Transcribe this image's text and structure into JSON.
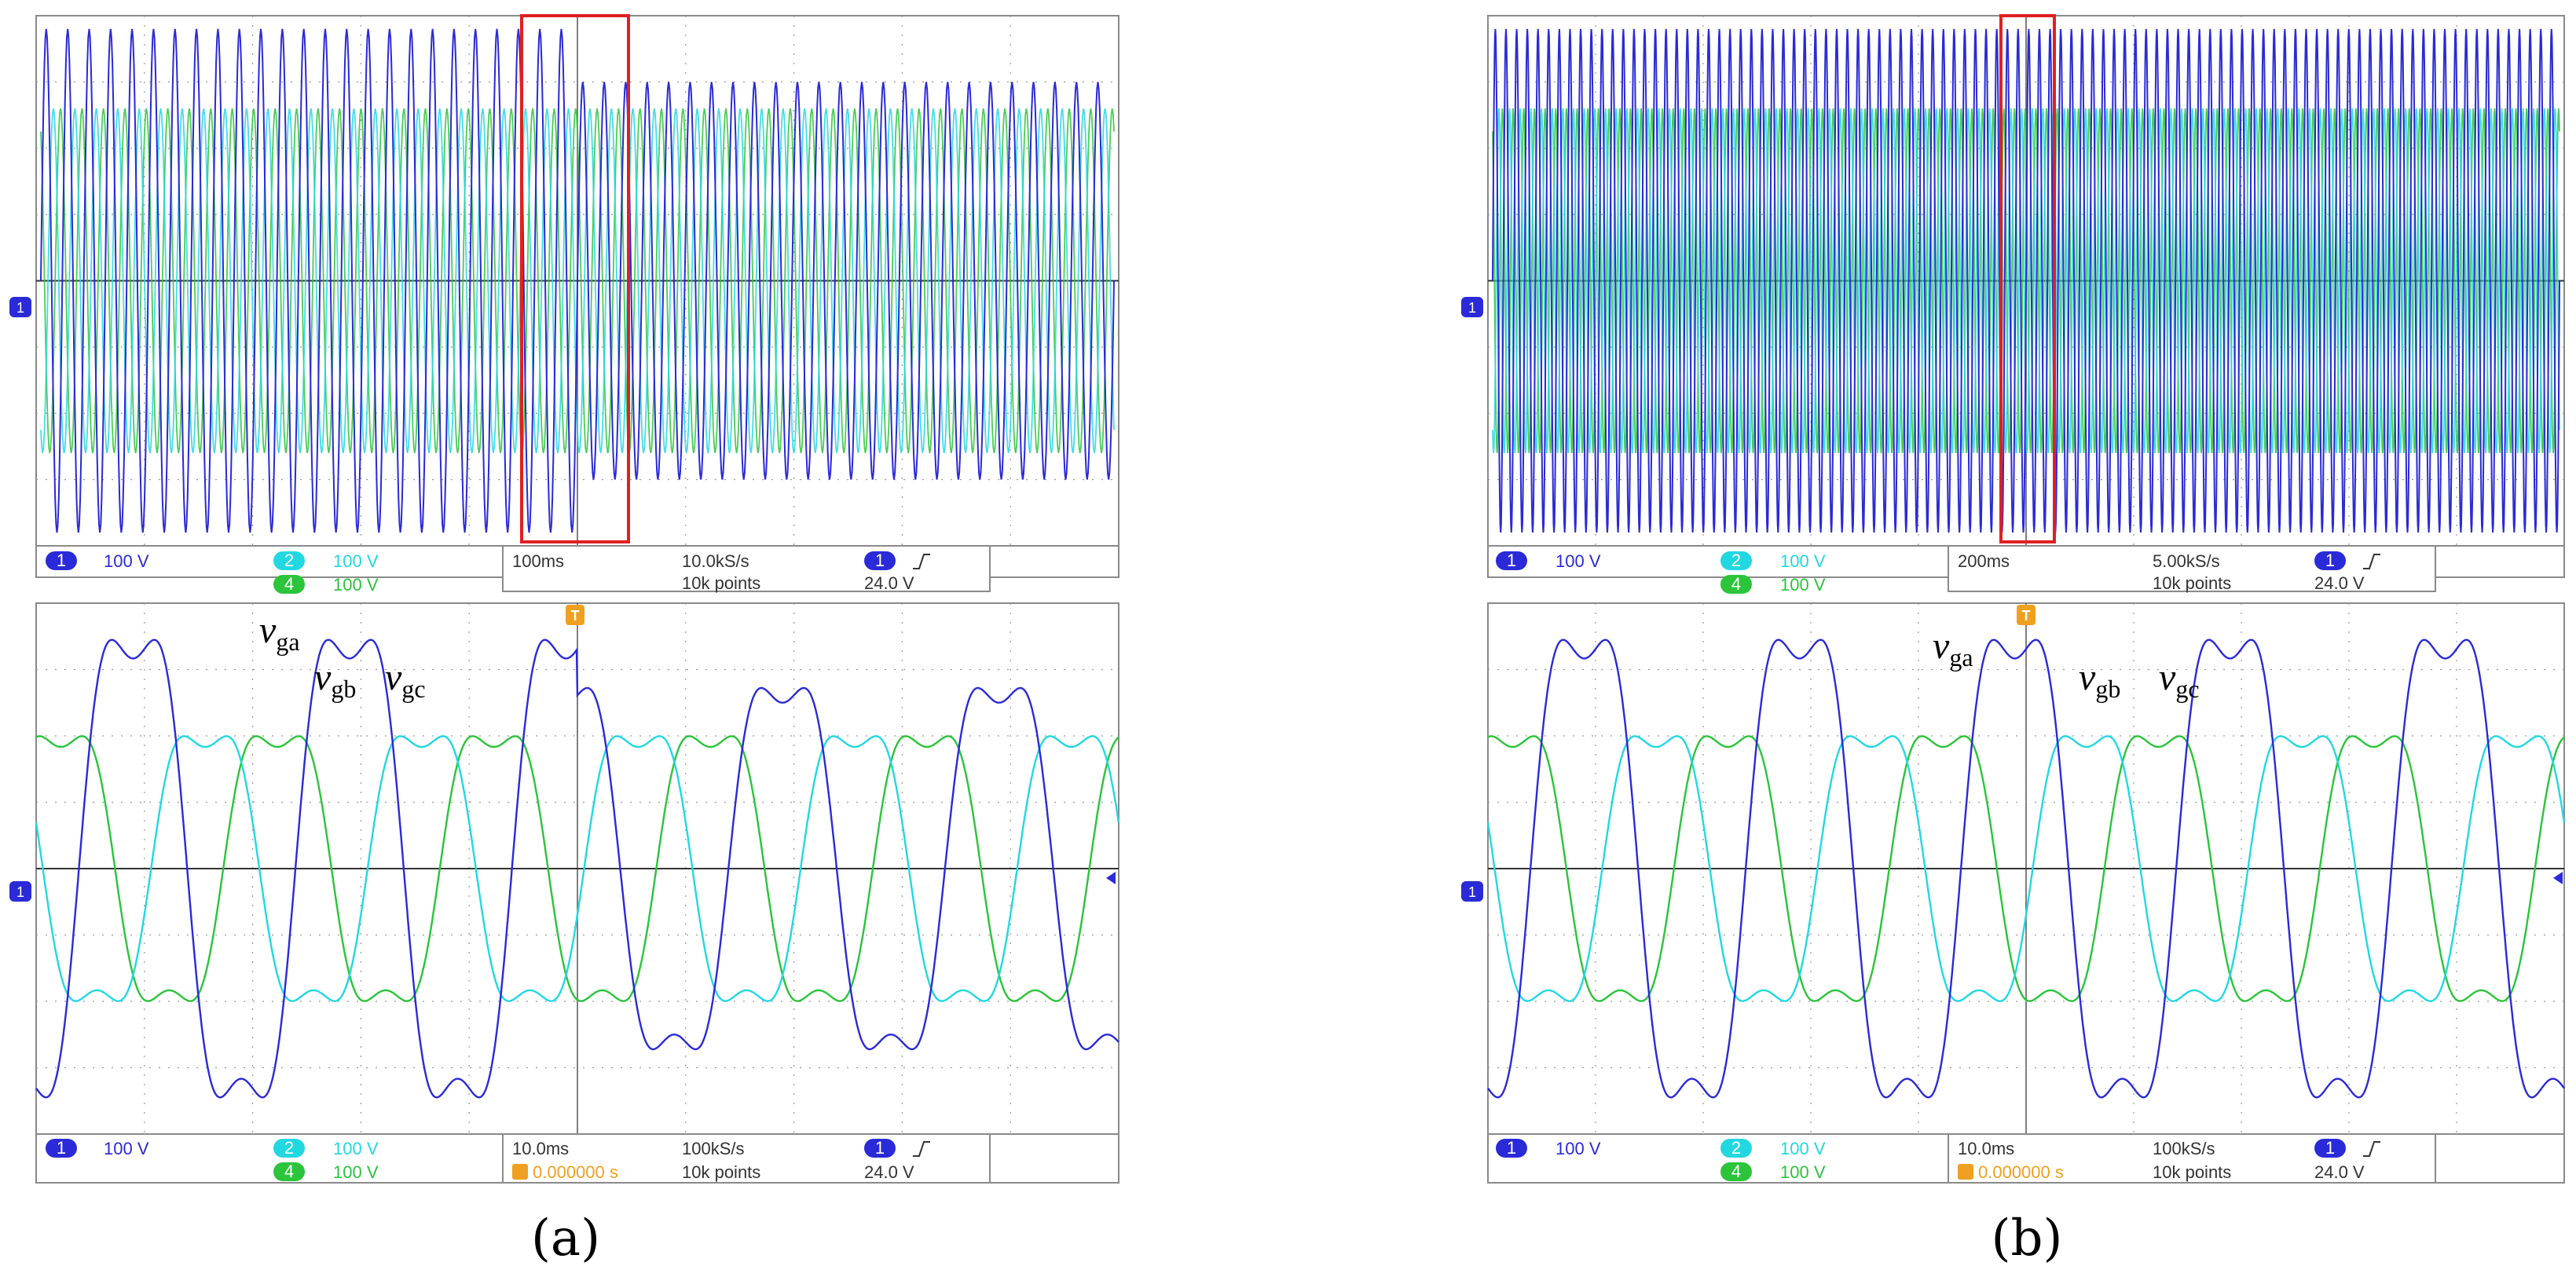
{
  "panels": [
    {
      "caption": "(a)",
      "top": {
        "readout": {
          "ch1_badge": "1",
          "ch1_scale": "100 V",
          "ch2_badge": "2",
          "ch2_scale": "100 V",
          "ch4_badge": "4",
          "ch4_scale": "100 V",
          "timebase": "100ms",
          "sample_rate": "10.0kS/s",
          "points": "10k points",
          "trig_badge": "1",
          "trig_level": "24.0 V"
        },
        "ch1_marker": "1"
      },
      "bottom": {
        "readout": {
          "ch1_badge": "1",
          "ch1_scale": "100 V",
          "ch2_badge": "2",
          "ch2_scale": "100 V",
          "ch4_badge": "4",
          "ch4_scale": "100 V",
          "timebase": "10.0ms",
          "sample_rate": "100kS/s",
          "points": "10k points",
          "trig_badge": "1",
          "trig_level": "24.0 V",
          "trig_offset": "0.000000 s"
        },
        "ch1_marker": "1",
        "labels": {
          "vga": {
            "base": "v",
            "sub": "ga"
          },
          "vgb": {
            "base": "v",
            "sub": "gb"
          },
          "vgc": {
            "base": "v",
            "sub": "gc"
          }
        }
      }
    },
    {
      "caption": "(b)",
      "top": {
        "readout": {
          "ch1_badge": "1",
          "ch1_scale": "100 V",
          "ch2_badge": "2",
          "ch2_scale": "100 V",
          "ch4_badge": "4",
          "ch4_scale": "100 V",
          "timebase": "200ms",
          "sample_rate": "5.00kS/s",
          "points": "10k points",
          "trig_badge": "1",
          "trig_level": "24.0 V"
        },
        "ch1_marker": "1"
      },
      "bottom": {
        "readout": {
          "ch1_badge": "1",
          "ch1_scale": "100 V",
          "ch2_badge": "2",
          "ch2_scale": "100 V",
          "ch4_badge": "4",
          "ch4_scale": "100 V",
          "timebase": "10.0ms",
          "sample_rate": "100kS/s",
          "points": "10k points",
          "trig_badge": "1",
          "trig_level": "24.0 V",
          "trig_offset": "0.000000 s"
        },
        "ch1_marker": "1",
        "labels": {
          "vga": {
            "base": "v",
            "sub": "ga"
          },
          "vgb": {
            "base": "v",
            "sub": "gb"
          },
          "vgc": {
            "base": "v",
            "sub": "gc"
          }
        }
      }
    }
  ],
  "colors": {
    "ch1": "#2a2ad8",
    "ch2": "#22d8e0",
    "ch4": "#2bc43a",
    "grid": "#9a9a9a",
    "highlight": "#e02020",
    "trigger": "#f0a020"
  },
  "chart_data": [
    {
      "type": "line",
      "panel": "(a) top",
      "timebase_per_div": "100ms",
      "y_scale_per_div": "100 V",
      "series": [
        {
          "name": "1",
          "note": "dense sinusoid, amplitude reduced after ~0.5 of record"
        },
        {
          "name": "2"
        },
        {
          "name": "4"
        }
      ]
    },
    {
      "type": "line",
      "panel": "(a) bottom",
      "x_unit": "ms",
      "xlim": [
        -50,
        50
      ],
      "y_unit": "V",
      "ylim": [
        -400,
        400
      ],
      "frequency_hz": 50,
      "series": [
        {
          "name": "v_ga",
          "amplitude_before": 380,
          "amplitude_after": 300,
          "step_at_ms": 0
        },
        {
          "name": "v_gb",
          "amplitude_before": 220,
          "amplitude_after": 220
        },
        {
          "name": "v_gc",
          "amplitude_before": 220,
          "amplitude_after": 220
        }
      ]
    },
    {
      "type": "line",
      "panel": "(b) top",
      "timebase_per_div": "200ms",
      "y_scale_per_div": "100 V",
      "series": [
        {
          "name": "1",
          "note": "dense sinusoid, constant amplitude"
        },
        {
          "name": "2"
        },
        {
          "name": "4"
        }
      ]
    },
    {
      "type": "line",
      "panel": "(b) bottom",
      "x_unit": "ms",
      "xlim": [
        -50,
        50
      ],
      "y_unit": "V",
      "ylim": [
        -400,
        400
      ],
      "frequency_hz": 50,
      "series": [
        {
          "name": "v_ga",
          "amplitude_before": 380,
          "amplitude_after": 380
        },
        {
          "name": "v_gb",
          "amplitude_before": 220,
          "amplitude_after": 220
        },
        {
          "name": "v_gc",
          "amplitude_before": 220,
          "amplitude_after": 220
        }
      ]
    }
  ]
}
